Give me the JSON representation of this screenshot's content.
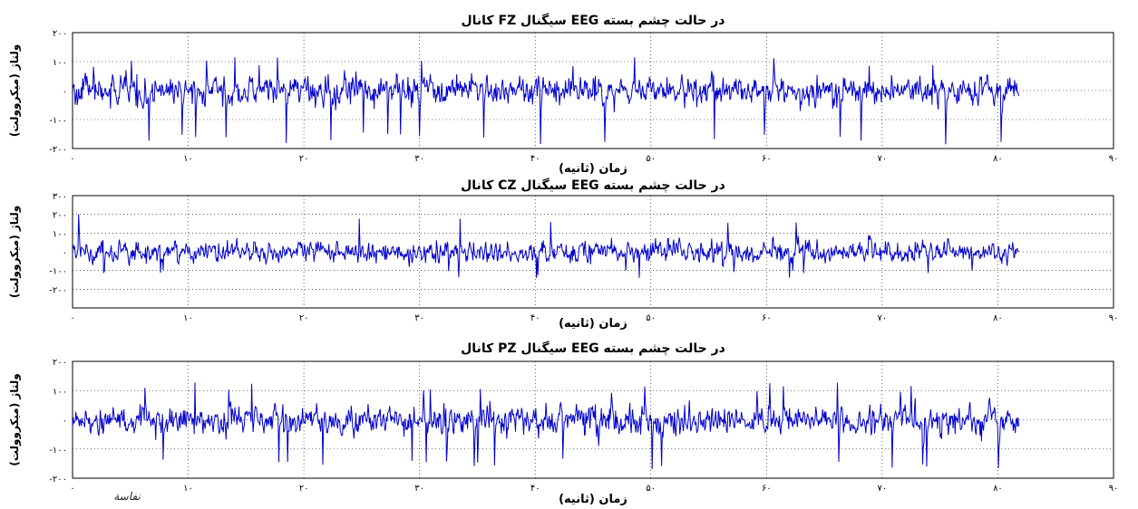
{
  "figure_note": "نفاسة",
  "chart_data": [
    {
      "type": "line",
      "title": "کانال FZ سیگنال EEG در حالت چشم بسته",
      "xlabel": "زمان (ثانیه)",
      "ylabel": "ولتاژ (میکروولت)",
      "xlim": [
        0,
        90
      ],
      "ylim": [
        -200,
        200
      ],
      "xticks": [
        0,
        10,
        20,
        30,
        40,
        50,
        60,
        70,
        80,
        90
      ],
      "xtick_labels": [
        "۰",
        "۱۰",
        "۲۰",
        "۳۰",
        "۴۰",
        "۵۰",
        "۶۰",
        "۷۰",
        "۸۰",
        "۹۰"
      ],
      "yticks": [
        200,
        100,
        0,
        -100,
        -200
      ],
      "ytick_labels": [
        "۲۰۰",
        "۱۰۰",
        "۰",
        "-۱۰۰",
        "-۲۰۰"
      ],
      "grid": true,
      "series": [
        {
          "color": "#0000cc",
          "t_start": 0,
          "t_end": 81.8,
          "amplitude_range": [
            -190,
            115
          ],
          "typical_range": [
            -70,
            70
          ]
        }
      ]
    },
    {
      "type": "line",
      "title": "کانال CZ سیگنال EEG در حالت چشم بسته",
      "xlabel": "زمان (ثانیه)",
      "ylabel": "ولتاژ (میکروولت)",
      "xlim": [
        0,
        90
      ],
      "ylim": [
        -300,
        300
      ],
      "xticks": [
        0,
        10,
        20,
        30,
        40,
        50,
        60,
        70,
        80,
        90
      ],
      "xtick_labels": [
        "۰",
        "۱۰",
        "۲۰",
        "۳۰",
        "۴۰",
        "۵۰",
        "۶۰",
        "۷۰",
        "۸۰",
        "۹۰"
      ],
      "yticks": [
        300,
        200,
        100,
        0,
        -100,
        -200
      ],
      "ytick_labels": [
        "۳۰۰",
        "۲۰۰",
        "۱۰۰",
        "۰",
        "-۱۰۰",
        "-۲۰۰"
      ],
      "grid": true,
      "series": [
        {
          "color": "#0000cc",
          "t_start": 0,
          "t_end": 81.8,
          "amplitude_range": [
            -140,
            200
          ],
          "typical_range": [
            -80,
            80
          ]
        }
      ]
    },
    {
      "type": "line",
      "title": "کانال PZ سیگنال EEG در حالت چشم بسته",
      "xlabel": "زمان (ثانیه)",
      "ylabel": "ولتاژ (میکروولت)",
      "xlim": [
        0,
        90
      ],
      "ylim": [
        -200,
        200
      ],
      "xticks": [
        0,
        10,
        20,
        30,
        40,
        50,
        60,
        70,
        80,
        90
      ],
      "xtick_labels": [
        "۰",
        "۱۰",
        "۲۰",
        "۳۰",
        "۴۰",
        "۵۰",
        "۶۰",
        "۷۰",
        "۸۰",
        "۹۰"
      ],
      "yticks": [
        200,
        100,
        0,
        -100,
        -200
      ],
      "ytick_labels": [
        "۲۰۰",
        "۱۰۰",
        "۰",
        "-۱۰۰",
        "-۲۰۰"
      ],
      "grid": true,
      "series": [
        {
          "color": "#0000cc",
          "t_start": 0,
          "t_end": 81.8,
          "amplitude_range": [
            -170,
            130
          ],
          "typical_range": [
            -70,
            70
          ]
        }
      ]
    }
  ]
}
